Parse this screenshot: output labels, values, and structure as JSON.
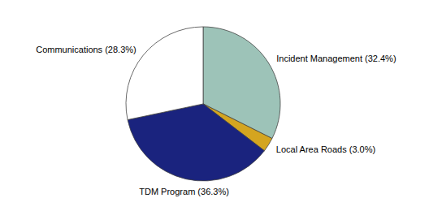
{
  "chart_data": {
    "type": "pie",
    "categories": [
      "Incident Management (32.4%)",
      "Local Area Roads (3.0%)",
      "TDM Program (36.3%)",
      "Communications (28.3%)"
    ],
    "values": [
      32.4,
      3.0,
      36.3,
      28.3
    ],
    "colors": [
      "#9DC3B8",
      "#D4A520",
      "#1A237E",
      "#FFFFFF"
    ]
  }
}
